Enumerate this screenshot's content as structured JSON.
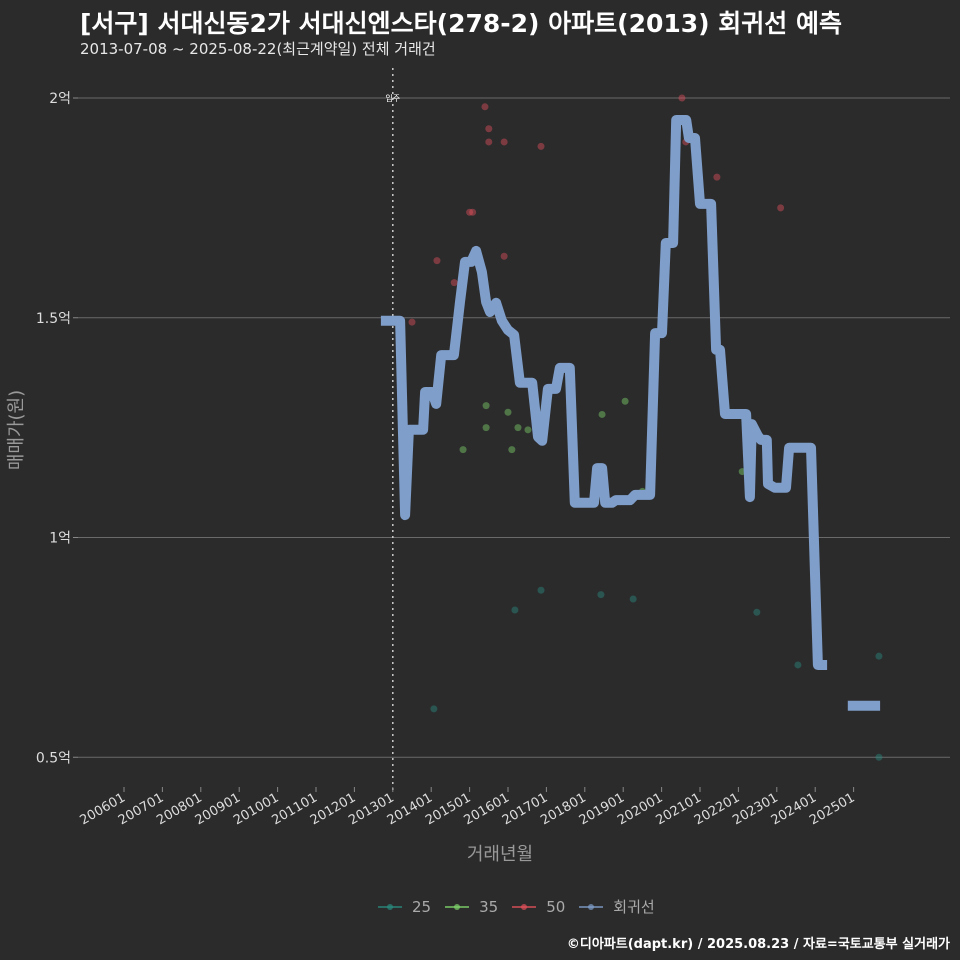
{
  "title": "[서구] 서대신동2가 서대신엔스타(278-2) 아파트(2013) 회귀선 예측",
  "subtitle": "2013-07-08 ~ 2025-08-22(최근계약일) 전체 거래건",
  "footer": "©디아파트(dapt.kr) / 2025.08.23 / 자료=국토교통부 실거래가",
  "chart_data": {
    "type": "scatter",
    "xlabel": "거래년월",
    "ylabel": "매매가(원)",
    "xlim": [
      2004.3,
      2027.6
    ],
    "ylim": [
      0.42,
      2.07
    ],
    "x_ticks": [
      {
        "v": 2006,
        "label": "200601"
      },
      {
        "v": 2007,
        "label": "200701"
      },
      {
        "v": 2008,
        "label": "200801"
      },
      {
        "v": 2009,
        "label": "200901"
      },
      {
        "v": 2010,
        "label": "201001"
      },
      {
        "v": 2011,
        "label": "201101"
      },
      {
        "v": 2012,
        "label": "201201"
      },
      {
        "v": 2013,
        "label": "201301"
      },
      {
        "v": 2014,
        "label": "201401"
      },
      {
        "v": 2015,
        "label": "201501"
      },
      {
        "v": 2016,
        "label": "201601"
      },
      {
        "v": 2017,
        "label": "201701"
      },
      {
        "v": 2018,
        "label": "201801"
      },
      {
        "v": 2019,
        "label": "201901"
      },
      {
        "v": 2020,
        "label": "202001"
      },
      {
        "v": 2021,
        "label": "202101"
      },
      {
        "v": 2022,
        "label": "202201"
      },
      {
        "v": 2023,
        "label": "202301"
      },
      {
        "v": 2024,
        "label": "202401"
      },
      {
        "v": 2025,
        "label": "202501"
      }
    ],
    "y_ticks": [
      {
        "v": 0.5,
        "label": "0.5억"
      },
      {
        "v": 1.0,
        "label": "1억"
      },
      {
        "v": 1.5,
        "label": "1.5억"
      },
      {
        "v": 2.0,
        "label": "2억"
      }
    ],
    "annotation": {
      "x": 2013.0,
      "label": "입주"
    },
    "legend_position": "bottom",
    "series": [
      {
        "name": "25",
        "color": "#2a8a7e",
        "points": [
          [
            2014.07,
            0.61
          ],
          [
            2016.18,
            0.835
          ],
          [
            2016.86,
            0.88
          ],
          [
            2018.42,
            0.87
          ],
          [
            2019.26,
            0.86
          ],
          [
            2022.48,
            0.83
          ],
          [
            2023.55,
            0.71
          ],
          [
            2025.66,
            0.73
          ],
          [
            2025.66,
            0.5
          ]
        ]
      },
      {
        "name": "35",
        "color": "#7fd36b",
        "points": [
          [
            2014.83,
            1.2
          ],
          [
            2015.43,
            1.3
          ],
          [
            2015.43,
            1.25
          ],
          [
            2016.0,
            1.285
          ],
          [
            2016.1,
            1.2
          ],
          [
            2016.26,
            1.25
          ],
          [
            2016.52,
            1.245
          ],
          [
            2018.45,
            1.28
          ],
          [
            2019.05,
            1.31
          ],
          [
            2019.5,
            1.105
          ],
          [
            2022.1,
            1.15
          ]
        ]
      },
      {
        "name": "50",
        "color": "#e0505a",
        "points": [
          [
            2013.5,
            1.49
          ],
          [
            2014.15,
            1.63
          ],
          [
            2014.6,
            1.58
          ],
          [
            2015.0,
            1.74
          ],
          [
            2015.08,
            1.74
          ],
          [
            2015.4,
            1.98
          ],
          [
            2015.5,
            1.93
          ],
          [
            2015.5,
            1.9
          ],
          [
            2015.9,
            1.9
          ],
          [
            2015.9,
            1.64
          ],
          [
            2016.86,
            1.89
          ],
          [
            2020.53,
            2.0
          ],
          [
            2020.63,
            1.9
          ],
          [
            2021.44,
            1.82
          ],
          [
            2023.1,
            1.75
          ]
        ]
      },
      {
        "name": "회귀선",
        "color": "#7f9ec9",
        "line": [
          [
            2012.69,
            1.493
          ],
          [
            2013.19,
            1.493
          ],
          [
            2013.32,
            1.051
          ],
          [
            2013.42,
            1.245
          ],
          [
            2013.79,
            1.245
          ],
          [
            2013.84,
            1.331
          ],
          [
            2014.02,
            1.331
          ],
          [
            2014.13,
            1.304
          ],
          [
            2014.26,
            1.415
          ],
          [
            2014.59,
            1.415
          ],
          [
            2014.75,
            1.536
          ],
          [
            2014.88,
            1.627
          ],
          [
            2015.04,
            1.627
          ],
          [
            2015.17,
            1.652
          ],
          [
            2015.32,
            1.604
          ],
          [
            2015.43,
            1.536
          ],
          [
            2015.53,
            1.513
          ],
          [
            2015.69,
            1.534
          ],
          [
            2015.84,
            1.493
          ],
          [
            2016.0,
            1.472
          ],
          [
            2016.16,
            1.461
          ],
          [
            2016.31,
            1.352
          ],
          [
            2016.63,
            1.352
          ],
          [
            2016.78,
            1.229
          ],
          [
            2016.89,
            1.22
          ],
          [
            2017.04,
            1.338
          ],
          [
            2017.25,
            1.338
          ],
          [
            2017.35,
            1.386
          ],
          [
            2017.61,
            1.386
          ],
          [
            2017.74,
            1.079
          ],
          [
            2018.24,
            1.079
          ],
          [
            2018.32,
            1.158
          ],
          [
            2018.45,
            1.158
          ],
          [
            2018.53,
            1.079
          ],
          [
            2018.71,
            1.079
          ],
          [
            2018.81,
            1.085
          ],
          [
            2019.18,
            1.085
          ],
          [
            2019.31,
            1.097
          ],
          [
            2019.7,
            1.097
          ],
          [
            2019.83,
            1.465
          ],
          [
            2020.01,
            1.465
          ],
          [
            2020.11,
            1.67
          ],
          [
            2020.3,
            1.67
          ],
          [
            2020.38,
            1.95
          ],
          [
            2020.64,
            1.95
          ],
          [
            2020.71,
            1.909
          ],
          [
            2020.87,
            1.909
          ],
          [
            2021.0,
            1.759
          ],
          [
            2021.29,
            1.759
          ],
          [
            2021.42,
            1.427
          ],
          [
            2021.52,
            1.427
          ],
          [
            2021.65,
            1.281
          ],
          [
            2022.2,
            1.281
          ],
          [
            2022.3,
            1.092
          ],
          [
            2022.35,
            1.258
          ],
          [
            2022.51,
            1.231
          ],
          [
            2022.59,
            1.222
          ],
          [
            2022.74,
            1.222
          ],
          [
            2022.77,
            1.122
          ],
          [
            2022.95,
            1.113
          ],
          [
            2023.24,
            1.113
          ],
          [
            2023.32,
            1.204
          ],
          [
            2023.89,
            1.204
          ],
          [
            2024.07,
            0.71
          ],
          [
            2024.31,
            0.71
          ],
          null,
          [
            2024.85,
            0.617
          ],
          [
            2025.69,
            0.617
          ]
        ]
      }
    ]
  }
}
